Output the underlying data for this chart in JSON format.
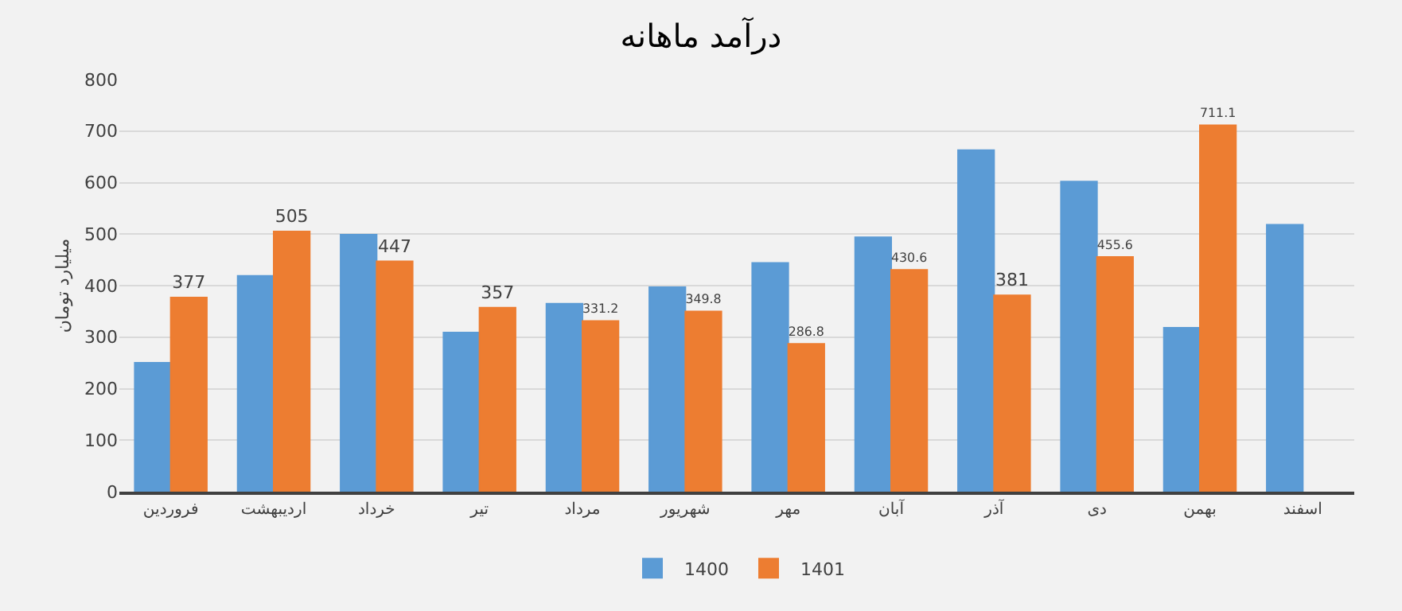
{
  "chart_data": {
    "type": "bar",
    "title": "درآمد ماهانه",
    "ylabel": "میلیارد تومان",
    "categories": [
      "فروردین",
      "اردیبهشت",
      "خرداد",
      "تیر",
      "مرداد",
      "شهریور",
      "مهر",
      "آبان",
      "آذر",
      "دی",
      "بهمن",
      "اسفند"
    ],
    "series": [
      {
        "name": "1400",
        "color": "#5b9bd5",
        "values": [
          250,
          419,
          499,
          309,
          365,
          397,
          444,
          494,
          663,
          602,
          318,
          518
        ]
      },
      {
        "name": "1401",
        "color": "#ed7d31",
        "values": [
          377,
          505,
          447,
          357,
          331.2,
          349.8,
          286.8,
          430.6,
          381,
          455.6,
          711.1,
          null
        ],
        "value_labels": [
          "377",
          "505",
          "447",
          "357",
          "331.2",
          "349.8",
          "286.8",
          "430.6",
          "381",
          "455.6",
          "711.1",
          null
        ]
      }
    ],
    "ylim": [
      0,
      800
    ],
    "yticks": [
      0,
      100,
      200,
      300,
      400,
      500,
      600,
      700,
      800
    ],
    "grid": "y",
    "legend": "bottom"
  }
}
